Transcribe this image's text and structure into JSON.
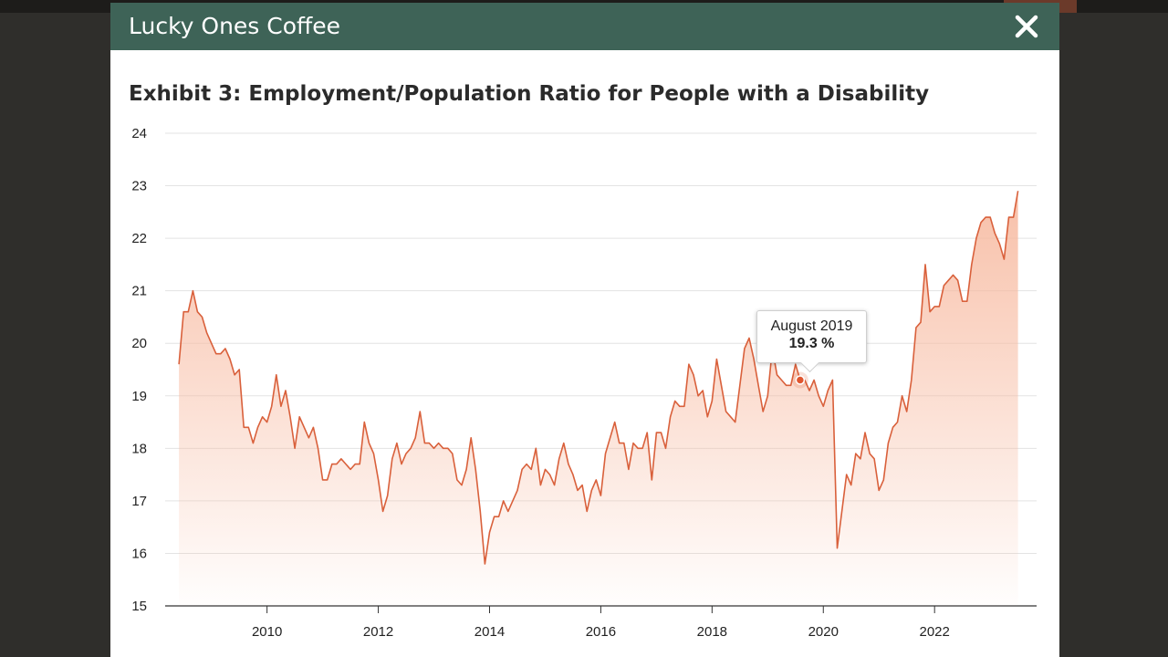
{
  "modal": {
    "title": "Lucky Ones Coffee",
    "close_label": "close"
  },
  "icons": {
    "close": "close-icon"
  },
  "colors": {
    "header_bg": "#3e6357",
    "line": "#d9603b",
    "fill_top": "#f7b99f",
    "marker": "#e0562f",
    "backdrop": "#2f2e2b"
  },
  "tooltip": {
    "label": "August 2019",
    "value": "19.3 %"
  },
  "chart_data": {
    "type": "area",
    "title": "Exhibit 3: Employment/Population Ratio for People with a Disability",
    "xlabel": "",
    "ylabel": "",
    "ylim": [
      15,
      24
    ],
    "xlim": [
      2008.3,
      2023.67
    ],
    "yticks": [
      "15",
      "16",
      "17",
      "18",
      "19",
      "20",
      "21",
      "22",
      "23",
      "24"
    ],
    "xticks": [
      "2010",
      "2012",
      "2014",
      "2016",
      "2018",
      "2020",
      "2022"
    ],
    "grid": true,
    "legend": "none",
    "series": [
      {
        "name": "Employment/Population Ratio (%)",
        "start": "2008-06",
        "frequency": "monthly",
        "values": [
          19.6,
          20.6,
          20.6,
          21.0,
          20.6,
          20.5,
          20.2,
          20.0,
          19.8,
          19.8,
          19.9,
          19.7,
          19.4,
          19.5,
          18.4,
          18.4,
          18.1,
          18.4,
          18.6,
          18.5,
          18.8,
          19.4,
          18.8,
          19.1,
          18.6,
          18.0,
          18.6,
          18.4,
          18.2,
          18.4,
          18.0,
          17.4,
          17.4,
          17.7,
          17.7,
          17.8,
          17.7,
          17.6,
          17.7,
          17.7,
          18.5,
          18.1,
          17.9,
          17.4,
          16.8,
          17.1,
          17.8,
          18.1,
          17.7,
          17.9,
          18.0,
          18.2,
          18.7,
          18.1,
          18.1,
          18.0,
          18.1,
          18.0,
          18.0,
          17.9,
          17.4,
          17.3,
          17.6,
          18.2,
          17.6,
          16.8,
          15.8,
          16.4,
          16.7,
          16.7,
          17.0,
          16.8,
          17.0,
          17.2,
          17.6,
          17.7,
          17.6,
          18.0,
          17.3,
          17.6,
          17.5,
          17.3,
          17.8,
          18.1,
          17.7,
          17.5,
          17.2,
          17.3,
          16.8,
          17.2,
          17.4,
          17.1,
          17.9,
          18.2,
          18.5,
          18.1,
          18.1,
          17.6,
          18.1,
          18.0,
          18.0,
          18.3,
          17.4,
          18.3,
          18.3,
          18.0,
          18.6,
          18.9,
          18.8,
          18.8,
          19.6,
          19.4,
          19.0,
          19.1,
          18.6,
          18.9,
          19.7,
          19.2,
          18.7,
          18.6,
          18.5,
          19.2,
          19.9,
          20.1,
          19.7,
          19.2,
          18.7,
          19.0,
          19.9,
          19.4,
          19.3,
          19.2,
          19.2,
          19.6,
          19.3,
          19.3,
          19.1,
          19.3,
          19.0,
          18.8,
          19.1,
          19.3,
          16.1,
          16.8,
          17.5,
          17.3,
          17.9,
          17.8,
          18.3,
          17.9,
          17.8,
          17.2,
          17.4,
          18.1,
          18.4,
          18.5,
          19.0,
          18.7,
          19.3,
          20.3,
          20.4,
          21.5,
          20.6,
          20.7,
          20.7,
          21.1,
          21.2,
          21.3,
          21.2,
          20.8,
          20.8,
          21.5,
          22.0,
          22.3,
          22.4,
          22.4,
          22.1,
          21.9,
          21.6,
          22.4,
          22.4,
          22.9
        ]
      }
    ],
    "highlight": {
      "label": "August 2019",
      "value": 19.3
    }
  }
}
